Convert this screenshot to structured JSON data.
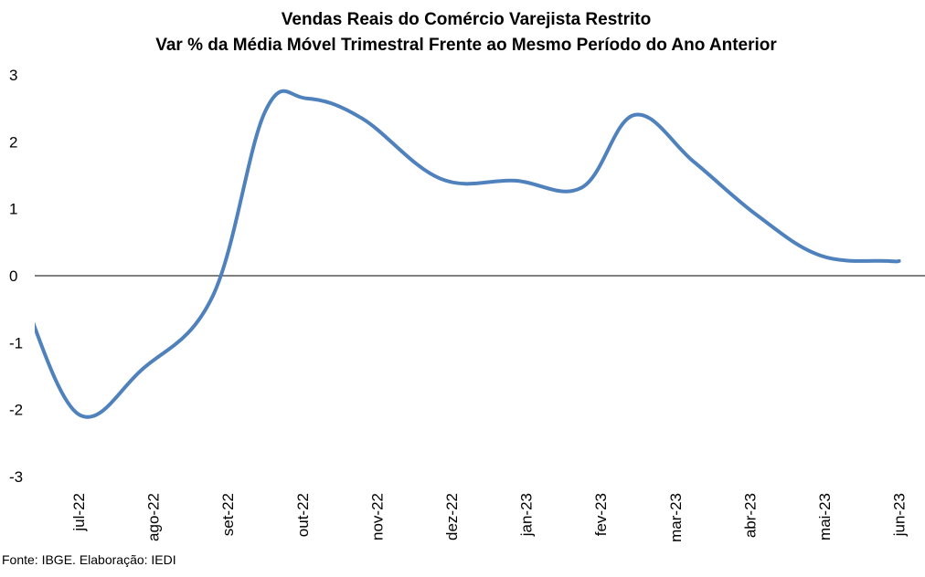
{
  "chart_data": {
    "type": "line",
    "title": "Vendas Reais do Comércio Varejista Restrito",
    "subtitle": "Var % da Média Móvel Trimestral Frente ao Mesmo Período do Ano Anterior",
    "categories": [
      "jul-22",
      "ago-22",
      "set-22",
      "out-22",
      "nov-22",
      "dez-22",
      "jan-23",
      "fev-23",
      "mar-23",
      "abr-23",
      "mai-23",
      "jun-23"
    ],
    "x": [
      -0.75,
      -0.0,
      0.85,
      1.8,
      2.5,
      3.05,
      3.8,
      4.85,
      5.85,
      6.75,
      7.45,
      8.25,
      9.1,
      9.95,
      10.85,
      11.0
    ],
    "values": [
      -0.3,
      -2.07,
      -1.4,
      -0.3,
      2.45,
      2.65,
      2.35,
      1.45,
      1.42,
      1.32,
      2.4,
      1.7,
      0.9,
      0.3,
      0.22,
      0.22
    ],
    "y_ticks": [
      "3",
      "2",
      "1",
      "0",
      "-1",
      "-2",
      "-3"
    ],
    "ylim": [
      -3,
      3
    ],
    "grid": false,
    "legend": "none",
    "line_color": "#4F81BD"
  },
  "source": "Fonte: IBGE. Elaboração: IEDI"
}
